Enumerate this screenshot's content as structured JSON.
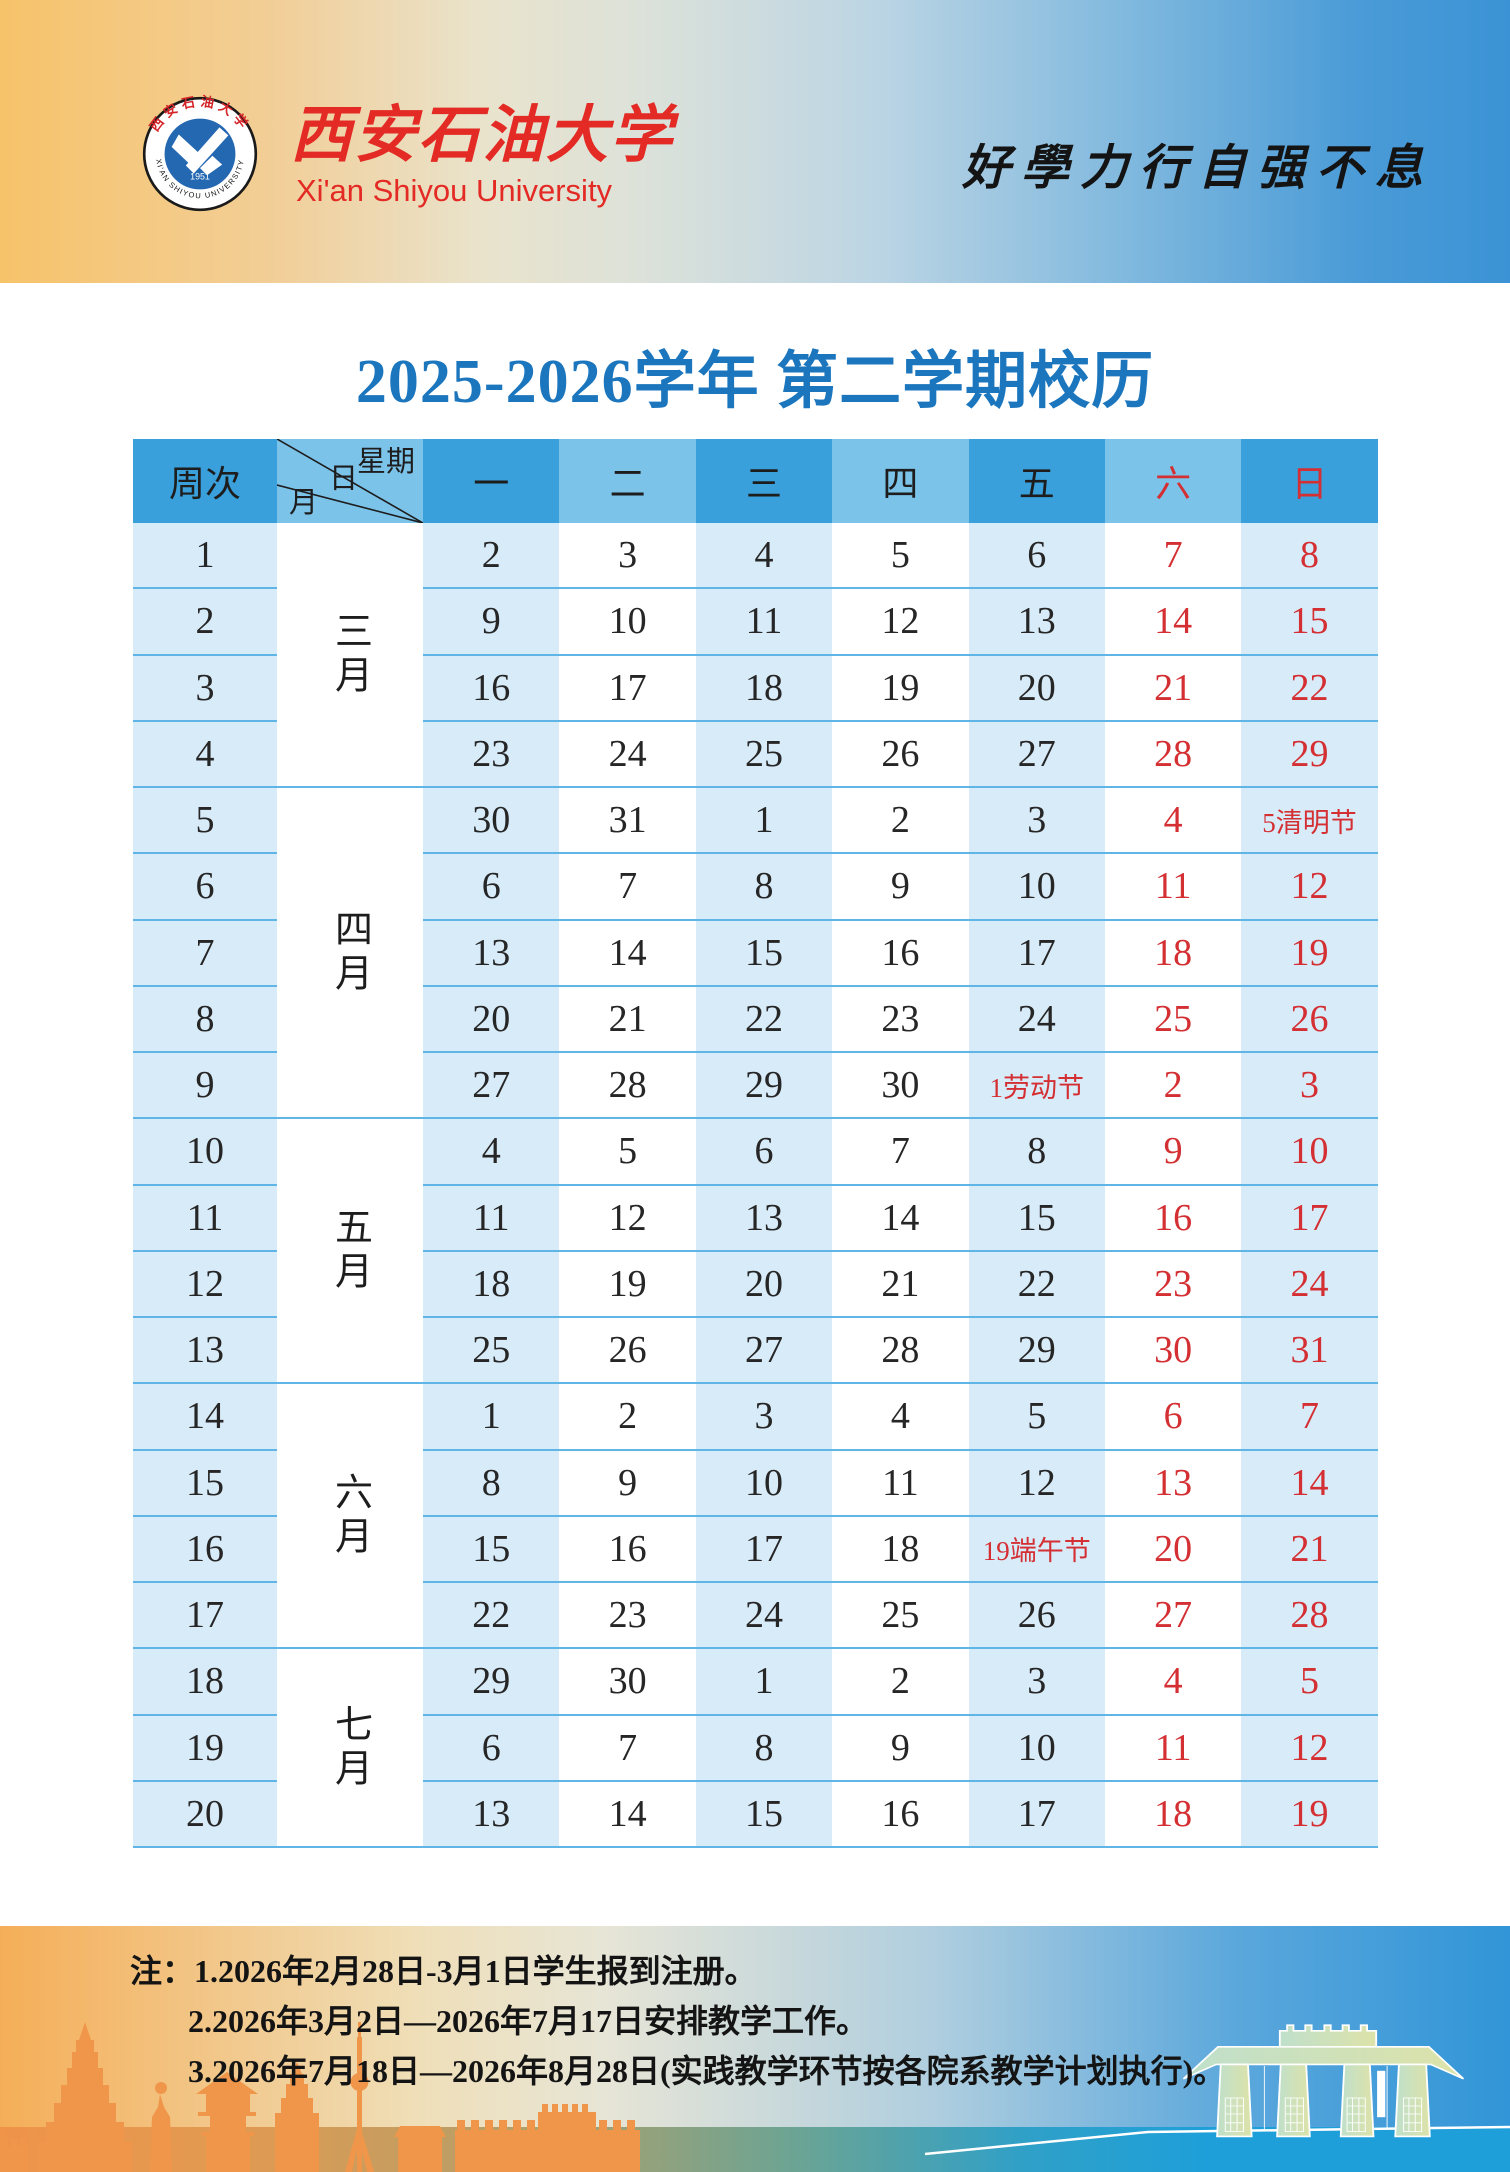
{
  "banner": {
    "university_cn": "西安石油大学",
    "university_en": "Xi'an Shiyou University",
    "motto": "好學力行自强不息",
    "logo": {
      "ring_top": "西安石油大学",
      "ring_bottom": "XI'AN SHIYOU UNIVERSITY",
      "year": "1951"
    }
  },
  "title": "2025-2026学年 第二学期校历",
  "calendar": {
    "week_header": "周次",
    "diagonal": {
      "top": "星期",
      "mid": "日",
      "bottom": "月"
    },
    "days": [
      "一",
      "二",
      "三",
      "四",
      "五",
      "六",
      "日"
    ],
    "months": [
      {
        "label": "三月",
        "weeks": 4
      },
      {
        "label": "四月",
        "weeks": 5
      },
      {
        "label": "五月",
        "weeks": 4
      },
      {
        "label": "六月",
        "weeks": 4
      },
      {
        "label": "七月",
        "weeks": 3
      }
    ],
    "rows": [
      {
        "week": "1",
        "dates": [
          "2",
          "3",
          "4",
          "5",
          "6",
          "7",
          "8"
        ]
      },
      {
        "week": "2",
        "dates": [
          "9",
          "10",
          "11",
          "12",
          "13",
          "14",
          "15"
        ]
      },
      {
        "week": "3",
        "dates": [
          "16",
          "17",
          "18",
          "19",
          "20",
          "21",
          "22"
        ]
      },
      {
        "week": "4",
        "dates": [
          "23",
          "24",
          "25",
          "26",
          "27",
          "28",
          "29"
        ]
      },
      {
        "week": "5",
        "dates": [
          "30",
          "31",
          "1",
          "2",
          "3",
          "4",
          "5清明节"
        ]
      },
      {
        "week": "6",
        "dates": [
          "6",
          "7",
          "8",
          "9",
          "10",
          "11",
          "12"
        ]
      },
      {
        "week": "7",
        "dates": [
          "13",
          "14",
          "15",
          "16",
          "17",
          "18",
          "19"
        ]
      },
      {
        "week": "8",
        "dates": [
          "20",
          "21",
          "22",
          "23",
          "24",
          "25",
          "26"
        ]
      },
      {
        "week": "9",
        "dates": [
          "27",
          "28",
          "29",
          "30",
          "1劳动节",
          "2",
          "3"
        ]
      },
      {
        "week": "10",
        "dates": [
          "4",
          "5",
          "6",
          "7",
          "8",
          "9",
          "10"
        ]
      },
      {
        "week": "11",
        "dates": [
          "11",
          "12",
          "13",
          "14",
          "15",
          "16",
          "17"
        ]
      },
      {
        "week": "12",
        "dates": [
          "18",
          "19",
          "20",
          "21",
          "22",
          "23",
          "24"
        ]
      },
      {
        "week": "13",
        "dates": [
          "25",
          "26",
          "27",
          "28",
          "29",
          "30",
          "31"
        ]
      },
      {
        "week": "14",
        "dates": [
          "1",
          "2",
          "3",
          "4",
          "5",
          "6",
          "7"
        ]
      },
      {
        "week": "15",
        "dates": [
          "8",
          "9",
          "10",
          "11",
          "12",
          "13",
          "14"
        ]
      },
      {
        "week": "16",
        "dates": [
          "15",
          "16",
          "17",
          "18",
          "19端午节",
          "20",
          "21"
        ]
      },
      {
        "week": "17",
        "dates": [
          "22",
          "23",
          "24",
          "25",
          "26",
          "27",
          "28"
        ]
      },
      {
        "week": "18",
        "dates": [
          "29",
          "30",
          "1",
          "2",
          "3",
          "4",
          "5"
        ]
      },
      {
        "week": "19",
        "dates": [
          "6",
          "7",
          "8",
          "9",
          "10",
          "11",
          "12"
        ]
      },
      {
        "week": "20",
        "dates": [
          "13",
          "14",
          "15",
          "16",
          "17",
          "18",
          "19"
        ]
      }
    ],
    "weekend_columns": [
      5,
      6
    ],
    "holiday_cells": [
      {
        "row": 4,
        "col": 6,
        "label": "5清明节"
      },
      {
        "row": 8,
        "col": 4,
        "label": "1劳动节"
      },
      {
        "row": 15,
        "col": 4,
        "label": "19端午节"
      }
    ]
  },
  "footer": {
    "notes": [
      "注：1.2026年2月28日-3月1日学生报到注册。",
      "2.2026年3月2日—2026年7月17日安排教学工作。",
      "3.2026年7月18日—2026年8月28日(实践教学环节按各院系教学计划执行)。"
    ]
  },
  "colors": {
    "header_dark": "#39A0DB",
    "header_light": "#7CC3EA",
    "cell_blue": "#D8EBF9",
    "row_line": "#5FB5E5",
    "red": "#D42F33",
    "title_blue": "#1B76BE",
    "brand_red": "#E32A24",
    "skyline_orange": "#F0964B"
  }
}
